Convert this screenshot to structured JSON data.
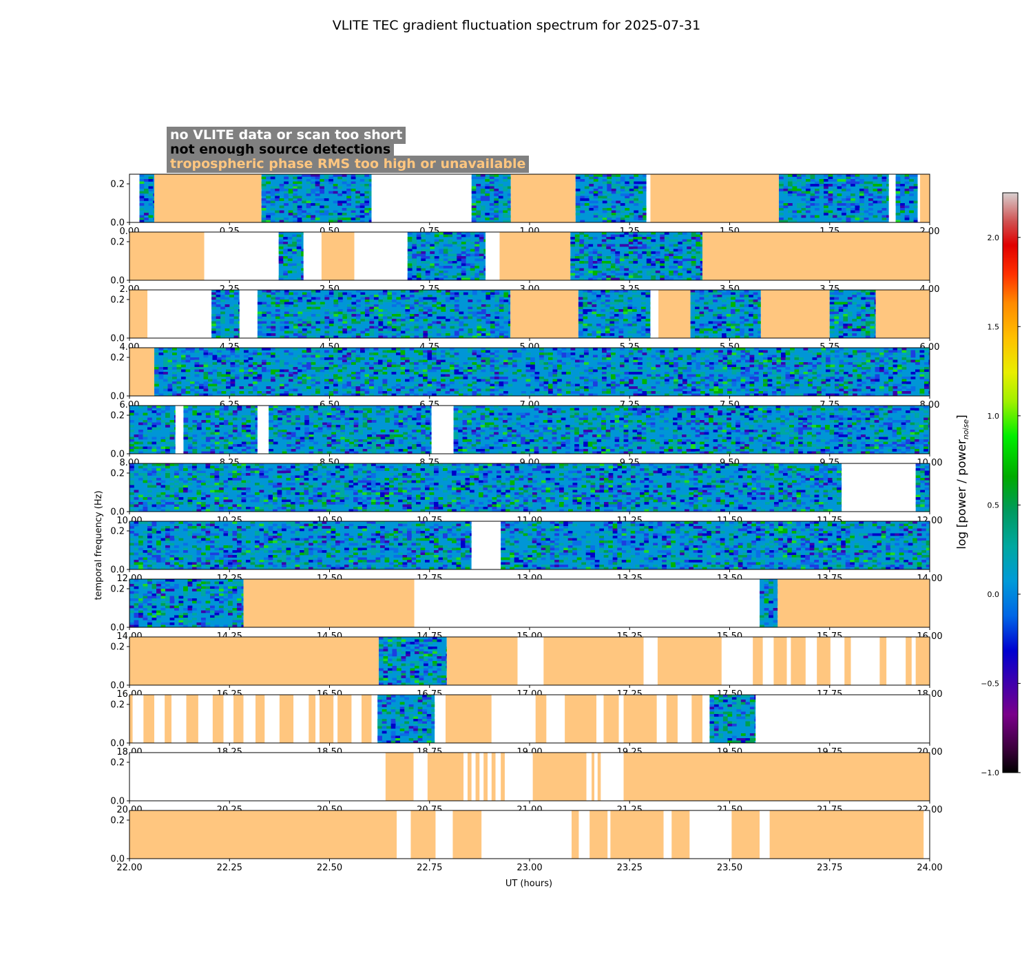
{
  "chart_data": {
    "type": "heatmap",
    "title": "VLITE TEC gradient fluctuation spectrum for 2025-07-31",
    "xlabel": "UT (hours)",
    "ylabel": "temporal frequency (Hz)",
    "ylim": [
      0,
      0.25
    ],
    "yticks": [
      0.0,
      0.2
    ],
    "colorbar": {
      "label": "log [power / power",
      "label_sub": "noise",
      "label_end": "]",
      "range": [
        -1.0,
        2.25
      ],
      "ticks": [
        -1.0,
        -0.5,
        0.0,
        0.5,
        1.0,
        1.5,
        2.0
      ]
    },
    "legend": [
      {
        "label": "no VLITE data or scan too short",
        "status": "none",
        "color": "#ffffff"
      },
      {
        "label": "not enough source detections",
        "status": "nodet",
        "color": "#000000"
      },
      {
        "label": "tropospheric phase RMS too high or unavailable",
        "status": "trop",
        "color": "#ffc67f"
      }
    ],
    "panels": [
      {
        "xlim": [
          0,
          2
        ],
        "segments": [
          [
            0.0,
            0.025,
            "none"
          ],
          [
            0.025,
            0.062,
            "data"
          ],
          [
            0.062,
            0.33,
            "trop"
          ],
          [
            0.33,
            0.605,
            "data"
          ],
          [
            0.605,
            0.855,
            "none"
          ],
          [
            0.855,
            0.953,
            "data"
          ],
          [
            0.953,
            1.115,
            "trop"
          ],
          [
            1.115,
            1.292,
            "data"
          ],
          [
            1.292,
            1.302,
            "none"
          ],
          [
            1.302,
            1.623,
            "trop"
          ],
          [
            1.623,
            1.898,
            "data"
          ],
          [
            1.898,
            1.915,
            "none"
          ],
          [
            1.915,
            1.97,
            "data"
          ],
          [
            1.97,
            1.976,
            "none"
          ],
          [
            1.976,
            2.0,
            "trop"
          ]
        ]
      },
      {
        "xlim": [
          2,
          4
        ],
        "segments": [
          [
            2.0,
            2.187,
            "trop"
          ],
          [
            2.187,
            2.373,
            "none"
          ],
          [
            2.373,
            2.435,
            "data"
          ],
          [
            2.435,
            2.48,
            "none"
          ],
          [
            2.48,
            2.562,
            "trop"
          ],
          [
            2.562,
            2.695,
            "none"
          ],
          [
            2.695,
            2.89,
            "data"
          ],
          [
            2.89,
            2.925,
            "none"
          ],
          [
            2.925,
            3.102,
            "trop"
          ],
          [
            3.102,
            3.432,
            "data"
          ],
          [
            3.432,
            4.0,
            "trop"
          ]
        ]
      },
      {
        "xlim": [
          4,
          6
        ],
        "segments": [
          [
            4.0,
            4.045,
            "trop"
          ],
          [
            4.045,
            4.205,
            "none"
          ],
          [
            4.205,
            4.275,
            "data"
          ],
          [
            4.275,
            4.32,
            "none"
          ],
          [
            4.32,
            4.952,
            "data"
          ],
          [
            4.952,
            5.122,
            "trop"
          ],
          [
            5.122,
            5.302,
            "data"
          ],
          [
            5.302,
            5.322,
            "none"
          ],
          [
            5.322,
            5.402,
            "trop"
          ],
          [
            5.402,
            5.578,
            "data"
          ],
          [
            5.578,
            5.75,
            "trop"
          ],
          [
            5.75,
            5.865,
            "data"
          ],
          [
            5.865,
            6.0,
            "trop"
          ]
        ]
      },
      {
        "xlim": [
          6,
          8
        ],
        "segments": [
          [
            6.0,
            6.062,
            "trop"
          ],
          [
            6.062,
            8.0,
            "data"
          ]
        ]
      },
      {
        "xlim": [
          8,
          10
        ],
        "segments": [
          [
            8.0,
            8.115,
            "data"
          ],
          [
            8.115,
            8.135,
            "none"
          ],
          [
            8.135,
            8.32,
            "data"
          ],
          [
            8.32,
            8.348,
            "none"
          ],
          [
            8.348,
            8.755,
            "data"
          ],
          [
            8.755,
            8.81,
            "none"
          ],
          [
            8.81,
            10.0,
            "data"
          ]
        ]
      },
      {
        "xlim": [
          10,
          12
        ],
        "segments": [
          [
            10.0,
            11.78,
            "data"
          ],
          [
            11.78,
            11.965,
            "none"
          ],
          [
            11.965,
            12.0,
            "data"
          ]
        ]
      },
      {
        "xlim": [
          12,
          14
        ],
        "segments": [
          [
            12.0,
            12.855,
            "data"
          ],
          [
            12.855,
            12.928,
            "none"
          ],
          [
            12.928,
            14.0,
            "data"
          ]
        ]
      },
      {
        "xlim": [
          14,
          16
        ],
        "segments": [
          [
            14.0,
            14.285,
            "data"
          ],
          [
            14.285,
            14.712,
            "trop"
          ],
          [
            14.712,
            15.575,
            "none"
          ],
          [
            15.575,
            15.62,
            "data"
          ],
          [
            15.62,
            16.0,
            "trop"
          ]
        ]
      },
      {
        "xlim": [
          16,
          18
        ],
        "segments": [
          [
            16.0,
            16.623,
            "trop"
          ],
          [
            16.623,
            16.793,
            "data"
          ],
          [
            16.793,
            16.97,
            "trop"
          ],
          [
            16.97,
            17.035,
            "none"
          ],
          [
            17.035,
            17.285,
            "trop"
          ],
          [
            17.285,
            17.32,
            "none"
          ],
          [
            17.32,
            17.48,
            "trop"
          ],
          [
            17.48,
            17.558,
            "none"
          ],
          [
            17.558,
            17.583,
            "trop"
          ],
          [
            17.583,
            17.61,
            "none"
          ],
          [
            17.61,
            17.643,
            "trop"
          ],
          [
            17.643,
            17.653,
            "none"
          ],
          [
            17.653,
            17.69,
            "trop"
          ],
          [
            17.69,
            17.718,
            "none"
          ],
          [
            17.718,
            17.752,
            "trop"
          ],
          [
            17.752,
            17.787,
            "none"
          ],
          [
            17.787,
            17.803,
            "trop"
          ],
          [
            17.803,
            17.875,
            "none"
          ],
          [
            17.875,
            17.892,
            "trop"
          ],
          [
            17.892,
            17.94,
            "none"
          ],
          [
            17.94,
            17.955,
            "trop"
          ],
          [
            17.955,
            17.965,
            "none"
          ],
          [
            17.965,
            18.0,
            "trop"
          ]
        ]
      },
      {
        "xlim": [
          18,
          20
        ],
        "segments": [
          [
            18.0,
            18.008,
            "trop"
          ],
          [
            18.008,
            18.035,
            "none"
          ],
          [
            18.035,
            18.062,
            "trop"
          ],
          [
            18.062,
            18.088,
            "none"
          ],
          [
            18.088,
            18.105,
            "trop"
          ],
          [
            18.105,
            18.142,
            "none"
          ],
          [
            18.142,
            18.172,
            "trop"
          ],
          [
            18.172,
            18.208,
            "none"
          ],
          [
            18.208,
            18.235,
            "trop"
          ],
          [
            18.235,
            18.26,
            "none"
          ],
          [
            18.26,
            18.285,
            "trop"
          ],
          [
            18.285,
            18.315,
            "none"
          ],
          [
            18.315,
            18.338,
            "trop"
          ],
          [
            18.338,
            18.375,
            "none"
          ],
          [
            18.375,
            18.41,
            "trop"
          ],
          [
            18.41,
            18.448,
            "none"
          ],
          [
            18.448,
            18.465,
            "trop"
          ],
          [
            18.465,
            18.475,
            "none"
          ],
          [
            18.475,
            18.51,
            "trop"
          ],
          [
            18.51,
            18.52,
            "none"
          ],
          [
            18.52,
            18.555,
            "trop"
          ],
          [
            18.555,
            18.58,
            "none"
          ],
          [
            18.58,
            18.605,
            "trop"
          ],
          [
            18.605,
            18.62,
            "none"
          ],
          [
            18.62,
            18.763,
            "data"
          ],
          [
            18.763,
            18.79,
            "none"
          ],
          [
            18.79,
            18.905,
            "trop"
          ],
          [
            18.905,
            19.015,
            "none"
          ],
          [
            19.015,
            19.042,
            "trop"
          ],
          [
            19.042,
            19.088,
            "none"
          ],
          [
            19.088,
            19.167,
            "trop"
          ],
          [
            19.167,
            19.185,
            "none"
          ],
          [
            19.185,
            19.223,
            "trop"
          ],
          [
            19.223,
            19.235,
            "none"
          ],
          [
            19.235,
            19.318,
            "trop"
          ],
          [
            19.318,
            19.342,
            "none"
          ],
          [
            19.342,
            19.37,
            "trop"
          ],
          [
            19.37,
            19.405,
            "none"
          ],
          [
            19.405,
            19.432,
            "trop"
          ],
          [
            19.432,
            19.45,
            "none"
          ],
          [
            19.45,
            19.565,
            "data"
          ],
          [
            19.565,
            20.0,
            "none"
          ]
        ]
      },
      {
        "xlim": [
          20,
          22
        ],
        "segments": [
          [
            20.0,
            20.64,
            "none"
          ],
          [
            20.64,
            20.71,
            "trop"
          ],
          [
            20.71,
            20.745,
            "none"
          ],
          [
            20.745,
            20.835,
            "trop"
          ],
          [
            20.835,
            20.845,
            "none"
          ],
          [
            20.845,
            20.855,
            "trop"
          ],
          [
            20.855,
            20.865,
            "none"
          ],
          [
            20.865,
            20.875,
            "trop"
          ],
          [
            20.875,
            20.885,
            "none"
          ],
          [
            20.885,
            20.895,
            "trop"
          ],
          [
            20.895,
            20.905,
            "none"
          ],
          [
            20.905,
            20.915,
            "trop"
          ],
          [
            20.915,
            20.928,
            "none"
          ],
          [
            20.928,
            20.938,
            "trop"
          ],
          [
            20.938,
            21.008,
            "none"
          ],
          [
            21.008,
            21.142,
            "trop"
          ],
          [
            21.142,
            21.155,
            "none"
          ],
          [
            21.155,
            21.162,
            "trop"
          ],
          [
            21.162,
            21.17,
            "none"
          ],
          [
            21.17,
            21.178,
            "trop"
          ],
          [
            21.178,
            21.235,
            "none"
          ],
          [
            21.235,
            22.0,
            "trop"
          ]
        ]
      },
      {
        "xlim": [
          22,
          24
        ],
        "segments": [
          [
            22.0,
            22.668,
            "trop"
          ],
          [
            22.668,
            22.703,
            "none"
          ],
          [
            22.703,
            22.765,
            "trop"
          ],
          [
            22.765,
            22.808,
            "none"
          ],
          [
            22.808,
            22.88,
            "trop"
          ],
          [
            22.88,
            23.105,
            "none"
          ],
          [
            23.105,
            23.123,
            "trop"
          ],
          [
            23.123,
            23.15,
            "none"
          ],
          [
            23.15,
            23.195,
            "trop"
          ],
          [
            23.195,
            23.202,
            "none"
          ],
          [
            23.202,
            23.335,
            "trop"
          ],
          [
            23.335,
            23.355,
            "none"
          ],
          [
            23.355,
            23.4,
            "trop"
          ],
          [
            23.4,
            23.505,
            "none"
          ],
          [
            23.505,
            23.575,
            "trop"
          ],
          [
            23.575,
            23.6,
            "none"
          ],
          [
            23.6,
            23.985,
            "trop"
          ],
          [
            23.985,
            24.0,
            "none"
          ]
        ]
      }
    ]
  }
}
